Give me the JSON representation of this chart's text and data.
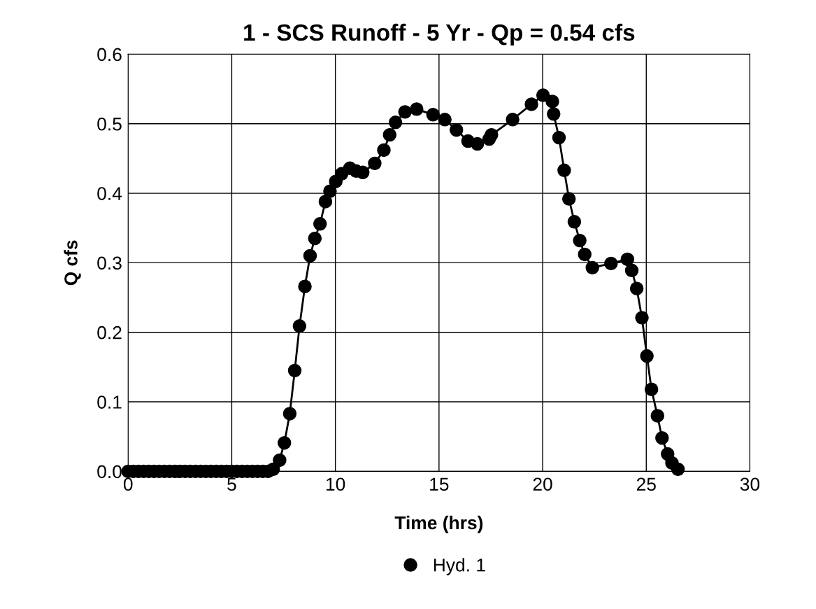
{
  "chart_data": {
    "type": "line",
    "title": "1 - SCS Runoff - 5 Yr - Qp = 0.54 cfs",
    "xlabel": "Time (hrs)",
    "ylabel": "Q cfs",
    "xlim": [
      0,
      30
    ],
    "xticks": [
      0,
      5,
      10,
      15,
      20,
      25,
      30
    ],
    "ylim": [
      0,
      0.6
    ],
    "yticks": [
      {
        "value": 0,
        "label": "0.0"
      },
      0.1,
      0.2,
      0.3,
      0.4,
      0.5,
      0.6
    ],
    "grid": true,
    "legend": "bottom",
    "marker": "circle",
    "line_style": "solid",
    "series": [
      {
        "name": "Hyd. 1",
        "color": "#000000",
        "x": [
          0,
          0.25,
          0.5,
          0.75,
          1,
          1.25,
          1.5,
          1.75,
          2,
          2.25,
          2.5,
          2.75,
          3,
          3.25,
          3.5,
          3.75,
          4,
          4.25,
          4.5,
          4.75,
          5,
          5.25,
          5.5,
          5.75,
          6,
          6.25,
          6.5,
          6.75,
          7,
          7.31,
          7.54,
          7.8,
          8.04,
          8.27,
          8.53,
          8.78,
          9.01,
          9.26,
          9.52,
          9.74,
          10.02,
          10.3,
          10.7,
          11.0,
          11.32,
          11.9,
          12.34,
          12.62,
          12.9,
          13.36,
          13.92,
          14.71,
          15.28,
          15.84,
          16.4,
          16.85,
          17.42,
          17.53,
          18.55,
          19.46,
          20.02,
          20.47,
          20.53,
          20.79,
          21.04,
          21.27,
          21.53,
          21.79,
          22.03,
          22.4,
          23.3,
          24.09,
          24.3,
          24.54,
          24.79,
          25.03,
          25.25,
          25.54,
          25.76,
          26.03,
          26.24,
          26.53
        ],
        "values": [
          0,
          0,
          0,
          0,
          0,
          0,
          0,
          0,
          0,
          0,
          0,
          0,
          0,
          0,
          0,
          0,
          0,
          0,
          0,
          0,
          0,
          0,
          0,
          0,
          0,
          0,
          0,
          0,
          0.003,
          0.016,
          0.041,
          0.083,
          0.145,
          0.209,
          0.266,
          0.31,
          0.335,
          0.356,
          0.388,
          0.403,
          0.417,
          0.428,
          0.436,
          0.432,
          0.43,
          0.443,
          0.462,
          0.484,
          0.502,
          0.517,
          0.521,
          0.513,
          0.506,
          0.491,
          0.475,
          0.471,
          0.478,
          0.484,
          0.506,
          0.528,
          0.541,
          0.532,
          0.514,
          0.48,
          0.433,
          0.392,
          0.359,
          0.332,
          0.312,
          0.293,
          0.299,
          0.305,
          0.289,
          0.263,
          0.221,
          0.166,
          0.118,
          0.08,
          0.048,
          0.025,
          0.012,
          0.003
        ]
      }
    ]
  }
}
